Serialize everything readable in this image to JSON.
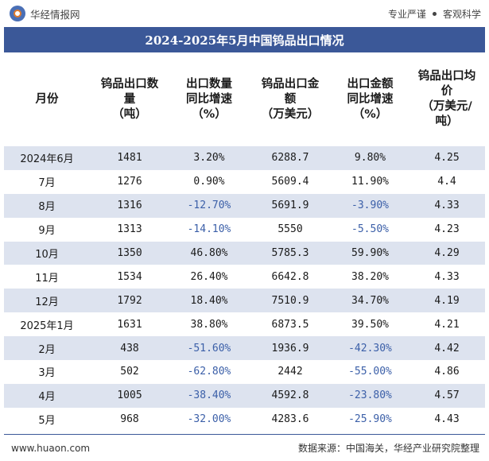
{
  "header": {
    "brand": "华经情报网",
    "tagline_left": "专业严谨",
    "tagline_right": "客观科学"
  },
  "title": "2024-2025年5月中国钨品出口情况",
  "columns": [
    "月份",
    "钨品出口数\n量\n（吨）",
    "出口数量\n同比增速\n（%）",
    "钨品出口金\n额\n（万美元）",
    "出口金额\n同比增速\n（%）",
    "钨品出口均\n价\n（万美元/\n吨）"
  ],
  "rows": [
    [
      "2024年6月",
      "1481",
      "3.20%",
      "6288.7",
      "9.80%",
      "4.25"
    ],
    [
      "7月",
      "1276",
      "0.90%",
      "5609.4",
      "11.90%",
      "4.4"
    ],
    [
      "8月",
      "1316",
      "-12.70%",
      "5691.9",
      "-3.90%",
      "4.33"
    ],
    [
      "9月",
      "1313",
      "-14.10%",
      "5550",
      "-5.50%",
      "4.23"
    ],
    [
      "10月",
      "1350",
      "46.80%",
      "5785.3",
      "59.90%",
      "4.29"
    ],
    [
      "11月",
      "1534",
      "26.40%",
      "6642.8",
      "38.20%",
      "4.33"
    ],
    [
      "12月",
      "1792",
      "18.40%",
      "7510.9",
      "34.70%",
      "4.19"
    ],
    [
      "2025年1月",
      "1631",
      "38.80%",
      "6873.5",
      "39.50%",
      "4.21"
    ],
    [
      "2月",
      "438",
      "-51.60%",
      "1936.9",
      "-42.30%",
      "4.42"
    ],
    [
      "3月",
      "502",
      "-62.80%",
      "2442",
      "-55.00%",
      "4.86"
    ],
    [
      "4月",
      "1005",
      "-38.40%",
      "4592.8",
      "-23.80%",
      "4.57"
    ],
    [
      "5月",
      "968",
      "-32.00%",
      "4283.6",
      "-25.90%",
      "4.43"
    ]
  ],
  "footer": {
    "url": "www.huaon.com",
    "source": "数据来源：中国海关，华经产业研究院整理"
  },
  "colors": {
    "accent": "#3b5898",
    "row_shade": "#dde3ef",
    "negative": "#3b5fa8"
  }
}
